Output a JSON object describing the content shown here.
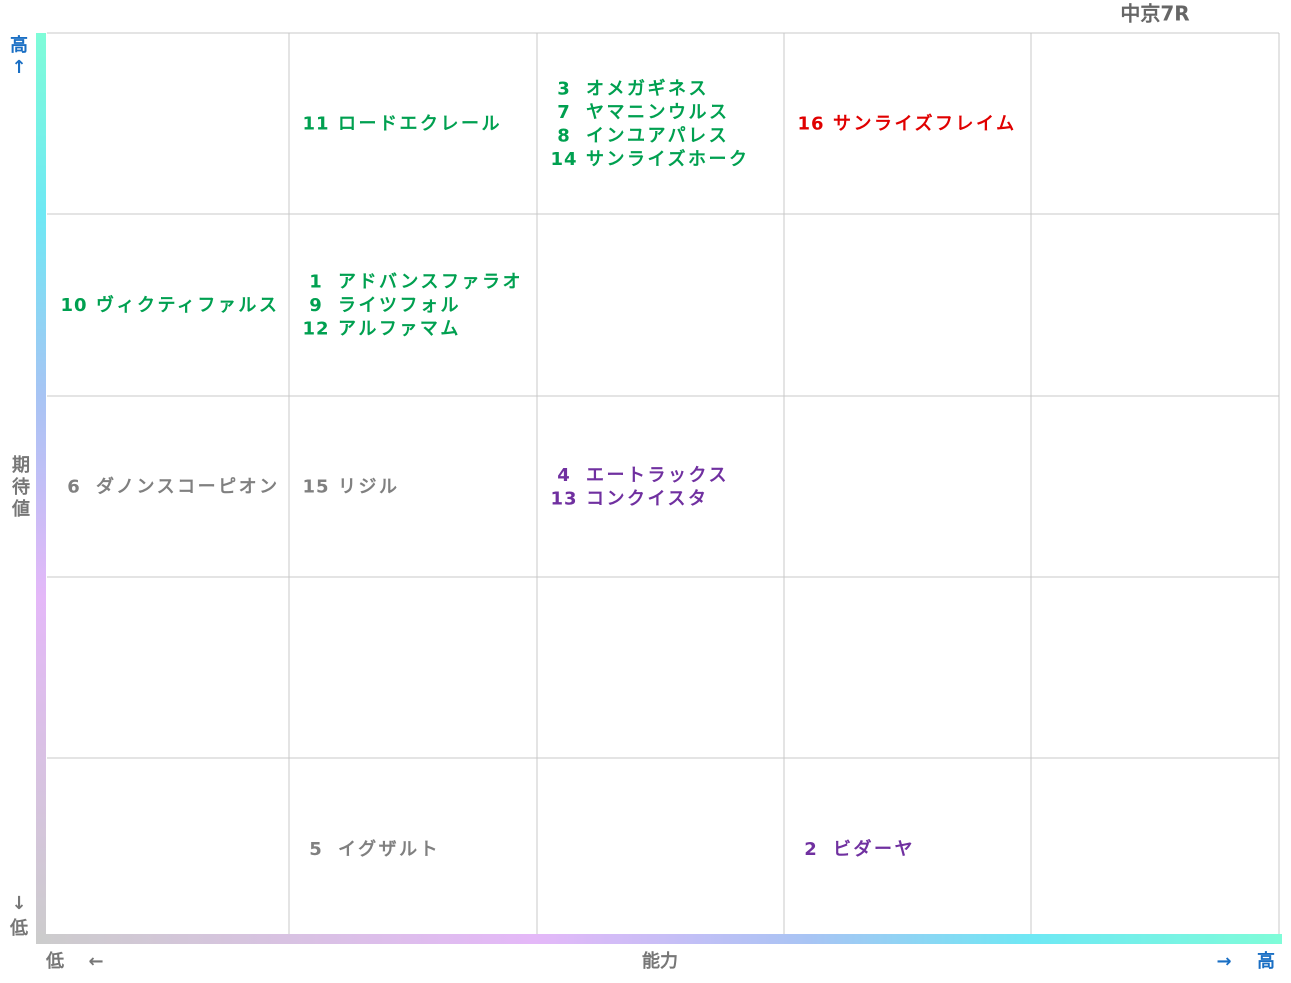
{
  "title": "中京7R",
  "y_axis": {
    "high": "高",
    "high_arrow": "↑",
    "label": "期待値",
    "low_arrow": "↓",
    "low": "低"
  },
  "x_axis": {
    "low": "低",
    "low_arrow": "←",
    "label": "能力",
    "high_arrow": "→",
    "high": "高"
  },
  "grid": {
    "rows": [
      [
        [],
        [
          {
            "number": "11",
            "name": "ロードエクレール",
            "color": "#00a050"
          }
        ],
        [
          {
            "number": "3",
            "name": "オメガギネス",
            "color": "#00a050"
          },
          {
            "number": "7",
            "name": "ヤマニンウルス",
            "color": "#00a050"
          },
          {
            "number": "8",
            "name": "インユアパレス",
            "color": "#00a050"
          },
          {
            "number": "14",
            "name": "サンライズホーク",
            "color": "#00a050"
          }
        ],
        [
          {
            "number": "16",
            "name": "サンライズフレイム",
            "color": "#e00000"
          }
        ],
        []
      ],
      [
        [
          {
            "number": "10",
            "name": "ヴィクティファルス",
            "color": "#00a050"
          }
        ],
        [
          {
            "number": "1",
            "name": "アドバンスファラオ",
            "color": "#00a050"
          },
          {
            "number": "9",
            "name": "ライツフォル",
            "color": "#00a050"
          },
          {
            "number": "12",
            "name": "アルファマム",
            "color": "#00a050"
          }
        ],
        [],
        [],
        []
      ],
      [
        [
          {
            "number": "6",
            "name": "ダノンスコーピオン",
            "color": "#808080"
          }
        ],
        [
          {
            "number": "15",
            "name": "リジル",
            "color": "#808080"
          }
        ],
        [
          {
            "number": "4",
            "name": "エートラックス",
            "color": "#7030a0"
          },
          {
            "number": "13",
            "name": "コンクイスタ",
            "color": "#7030a0"
          }
        ],
        [],
        []
      ],
      [
        [],
        [],
        [],
        [],
        []
      ],
      [
        [],
        [
          {
            "number": "5",
            "name": "イグザルト",
            "color": "#808080"
          }
        ],
        [],
        [
          {
            "number": "2",
            "name": "ビダーヤ",
            "color": "#7030a0"
          }
        ],
        []
      ]
    ]
  }
}
